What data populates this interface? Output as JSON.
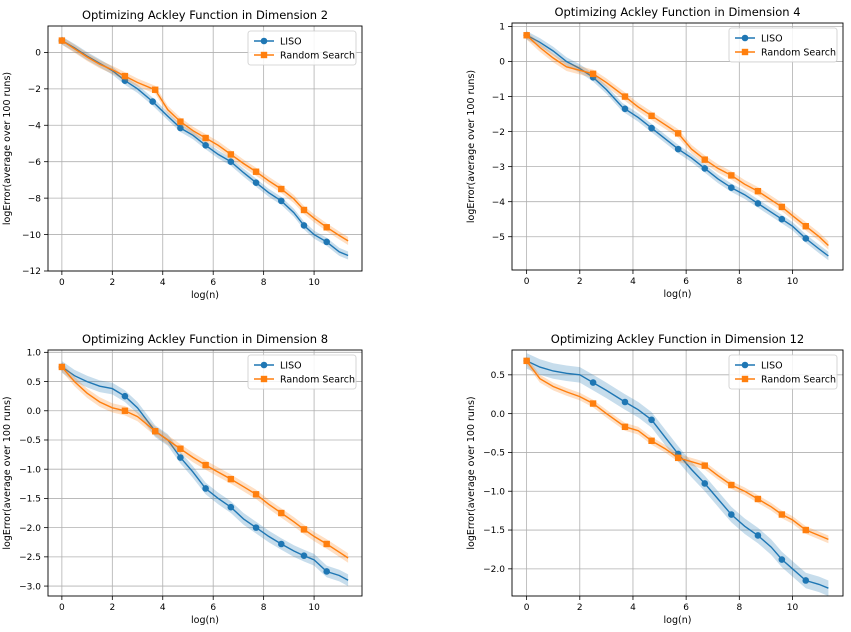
{
  "colors": {
    "liso": "#1f77b4",
    "random": "#ff7f0e",
    "grid": "#b0b0b0"
  },
  "chart_data": [
    {
      "type": "line",
      "title": "Optimizing Ackley Function in Dimension 2",
      "xlabel": "log(n)",
      "ylabel": "logError(average over 100 runs)",
      "xlim": [
        -0.55,
        11.9
      ],
      "ylim": [
        -12,
        1.45
      ],
      "xticks": [
        0,
        2,
        4,
        6,
        8,
        10
      ],
      "yticks": [
        -12,
        -10,
        -8,
        -6,
        -4,
        -2,
        0
      ],
      "grid": true,
      "legend": "top-right",
      "series": [
        {
          "name": "LISO",
          "marker": "circle",
          "color": "#1f77b4",
          "x": [
            0,
            0.5,
            1.0,
            1.5,
            2.0,
            2.5,
            3.0,
            3.6,
            4.2,
            4.7,
            5.2,
            5.7,
            6.2,
            6.7,
            7.2,
            7.7,
            8.2,
            8.7,
            9.2,
            9.6,
            10.0,
            10.5,
            11.0,
            11.35
          ],
          "y": [
            0.65,
            0.25,
            -0.2,
            -0.6,
            -1.0,
            -1.55,
            -2.0,
            -2.7,
            -3.5,
            -4.15,
            -4.55,
            -5.1,
            -5.6,
            -6.0,
            -6.6,
            -7.15,
            -7.7,
            -8.15,
            -8.8,
            -9.5,
            -10.0,
            -10.4,
            -10.95,
            -11.15
          ],
          "markers_x": [
            0,
            2.5,
            3.6,
            4.7,
            5.7,
            6.7,
            7.7,
            8.7,
            9.6,
            10.5
          ],
          "band": 0.22
        },
        {
          "name": "Random Search",
          "marker": "square",
          "color": "#ff7f0e",
          "x": [
            0,
            0.5,
            1.0,
            1.5,
            2.0,
            2.5,
            3.0,
            3.7,
            4.2,
            4.7,
            5.2,
            5.7,
            6.2,
            6.7,
            7.2,
            7.7,
            8.2,
            8.7,
            9.2,
            9.6,
            10.0,
            10.5,
            11.0,
            11.35
          ],
          "y": [
            0.65,
            0.2,
            -0.25,
            -0.65,
            -0.95,
            -1.3,
            -1.65,
            -2.05,
            -3.15,
            -3.8,
            -4.3,
            -4.7,
            -5.1,
            -5.6,
            -6.1,
            -6.55,
            -7.05,
            -7.5,
            -8.05,
            -8.65,
            -9.1,
            -9.6,
            -10.05,
            -10.35
          ],
          "markers_x": [
            0,
            2.5,
            3.7,
            4.7,
            5.7,
            6.7,
            7.7,
            8.7,
            9.6,
            10.5
          ],
          "band": 0.22
        }
      ]
    },
    {
      "type": "line",
      "title": "Optimizing Ackley Function in Dimension 4",
      "xlabel": "log(n)",
      "ylabel": "logError(average over 100 runs)",
      "xlim": [
        -0.55,
        11.9
      ],
      "ylim": [
        -5.95,
        1.1
      ],
      "xticks": [
        0,
        2,
        4,
        6,
        8,
        10
      ],
      "yticks": [
        -5,
        -4,
        -3,
        -2,
        -1,
        0,
        1
      ],
      "grid": true,
      "legend": "top-right",
      "series": [
        {
          "name": "LISO",
          "marker": "circle",
          "color": "#1f77b4",
          "x": [
            0,
            0.5,
            1.0,
            1.5,
            2.0,
            2.5,
            3.0,
            3.6,
            4.2,
            4.7,
            5.2,
            5.7,
            6.2,
            6.7,
            7.2,
            7.7,
            8.2,
            8.7,
            9.2,
            9.6,
            10.0,
            10.5,
            11.0,
            11.35
          ],
          "y": [
            0.75,
            0.55,
            0.3,
            0.0,
            -0.2,
            -0.45,
            -0.8,
            -1.3,
            -1.6,
            -1.9,
            -2.2,
            -2.5,
            -2.75,
            -3.05,
            -3.35,
            -3.6,
            -3.8,
            -4.05,
            -4.3,
            -4.5,
            -4.7,
            -5.05,
            -5.35,
            -5.55
          ],
          "markers_x": [
            0,
            2.5,
            3.7,
            4.7,
            5.7,
            6.7,
            7.7,
            8.7,
            9.6,
            10.5
          ],
          "band": 0.12
        },
        {
          "name": "Random Search",
          "marker": "square",
          "color": "#ff7f0e",
          "x": [
            0,
            0.5,
            1.0,
            1.5,
            2.0,
            2.5,
            3.0,
            3.7,
            4.2,
            4.7,
            5.2,
            5.7,
            6.2,
            6.7,
            7.2,
            7.7,
            8.2,
            8.7,
            9.2,
            9.6,
            10.0,
            10.5,
            11.0,
            11.35
          ],
          "y": [
            0.75,
            0.4,
            0.1,
            -0.15,
            -0.25,
            -0.35,
            -0.6,
            -1.0,
            -1.3,
            -1.55,
            -1.8,
            -2.05,
            -2.5,
            -2.8,
            -3.05,
            -3.25,
            -3.5,
            -3.7,
            -3.95,
            -4.15,
            -4.4,
            -4.7,
            -5.0,
            -5.25
          ],
          "markers_x": [
            0,
            2.5,
            3.7,
            4.7,
            5.7,
            6.7,
            7.7,
            8.7,
            9.6,
            10.5
          ],
          "band": 0.12
        }
      ]
    },
    {
      "type": "line",
      "title": "Optimizing Ackley Function in Dimension 8",
      "xlabel": "log(n)",
      "ylabel": "logError(average over 100 runs)",
      "xlim": [
        -0.55,
        11.9
      ],
      "ylim": [
        -3.17,
        1.04
      ],
      "xticks": [
        0,
        2,
        4,
        6,
        8,
        10
      ],
      "yticks": [
        -3.0,
        -2.5,
        -2.0,
        -1.5,
        -1.0,
        -0.5,
        0.0,
        0.5,
        1.0
      ],
      "ytick_labels": [
        "−3.0",
        "−2.5",
        "−2.0",
        "−1.5",
        "−1.0",
        "−0.5",
        "0.0",
        "0.5",
        "1.0"
      ],
      "grid": true,
      "legend": "top-right",
      "series": [
        {
          "name": "LISO",
          "marker": "circle",
          "color": "#1f77b4",
          "x": [
            0,
            0.5,
            1.0,
            1.5,
            2.0,
            2.5,
            3.0,
            3.7,
            4.2,
            4.7,
            5.2,
            5.7,
            6.2,
            6.7,
            7.2,
            7.7,
            8.2,
            8.7,
            9.2,
            9.6,
            10.0,
            10.5,
            11.0,
            11.35
          ],
          "y": [
            0.75,
            0.6,
            0.5,
            0.42,
            0.38,
            0.25,
            0.05,
            -0.35,
            -0.5,
            -0.8,
            -1.05,
            -1.33,
            -1.5,
            -1.65,
            -1.85,
            -2.0,
            -2.15,
            -2.28,
            -2.4,
            -2.48,
            -2.55,
            -2.75,
            -2.82,
            -2.9
          ],
          "markers_x": [
            0,
            2.5,
            3.7,
            4.7,
            5.7,
            6.7,
            7.7,
            8.7,
            9.6,
            10.5
          ],
          "band": 0.1
        },
        {
          "name": "Random Search",
          "marker": "square",
          "color": "#ff7f0e",
          "x": [
            0,
            0.5,
            1.0,
            1.5,
            2.0,
            2.5,
            3.0,
            3.7,
            4.2,
            4.7,
            5.2,
            5.7,
            6.2,
            6.7,
            7.2,
            7.7,
            8.2,
            8.7,
            9.2,
            9.6,
            10.0,
            10.5,
            11.0,
            11.35
          ],
          "y": [
            0.75,
            0.5,
            0.3,
            0.15,
            0.05,
            0.0,
            -0.1,
            -0.35,
            -0.5,
            -0.65,
            -0.8,
            -0.93,
            -1.05,
            -1.17,
            -1.3,
            -1.43,
            -1.6,
            -1.75,
            -1.9,
            -2.03,
            -2.15,
            -2.28,
            -2.42,
            -2.52
          ],
          "markers_x": [
            0,
            2.5,
            3.7,
            4.7,
            5.7,
            6.7,
            7.7,
            8.7,
            9.6,
            10.5
          ],
          "band": 0.08
        }
      ]
    },
    {
      "type": "line",
      "title": "Optimizing Ackley Function in Dimension 12",
      "xlabel": "log(n)",
      "ylabel": "logError(average over 100 runs)",
      "xlim": [
        -0.55,
        11.9
      ],
      "ylim": [
        -2.35,
        0.82
      ],
      "xticks": [
        0,
        2,
        4,
        6,
        8,
        10
      ],
      "yticks": [
        -2.0,
        -1.5,
        -1.0,
        -0.5,
        0.0,
        0.5
      ],
      "ytick_labels": [
        "−2.0",
        "−1.5",
        "−1.0",
        "−0.5",
        "0.0",
        "0.5"
      ],
      "grid": true,
      "legend": "top-right",
      "series": [
        {
          "name": "LISO",
          "marker": "circle",
          "color": "#1f77b4",
          "x": [
            0,
            0.5,
            1.0,
            1.5,
            2.0,
            2.5,
            3.0,
            3.7,
            4.2,
            4.7,
            5.2,
            5.7,
            6.2,
            6.7,
            7.2,
            7.7,
            8.2,
            8.7,
            9.2,
            9.6,
            10.0,
            10.5,
            11.0,
            11.35
          ],
          "y": [
            0.68,
            0.6,
            0.55,
            0.52,
            0.5,
            0.4,
            0.3,
            0.15,
            0.05,
            -0.08,
            -0.3,
            -0.52,
            -0.72,
            -0.9,
            -1.1,
            -1.3,
            -1.45,
            -1.57,
            -1.72,
            -1.88,
            -2.0,
            -2.15,
            -2.2,
            -2.25
          ],
          "markers_x": [
            0,
            2.5,
            3.7,
            4.7,
            5.7,
            6.7,
            7.7,
            8.7,
            9.6,
            10.5
          ],
          "band": 0.1
        },
        {
          "name": "Random Search",
          "marker": "square",
          "color": "#ff7f0e",
          "x": [
            0,
            0.5,
            1.0,
            1.5,
            2.0,
            2.5,
            3.0,
            3.7,
            4.2,
            4.7,
            5.2,
            5.7,
            6.2,
            6.7,
            7.2,
            7.7,
            8.2,
            8.7,
            9.2,
            9.6,
            10.0,
            10.5,
            11.0,
            11.35
          ],
          "y": [
            0.68,
            0.45,
            0.35,
            0.28,
            0.22,
            0.13,
            0.0,
            -0.17,
            -0.22,
            -0.35,
            -0.45,
            -0.57,
            -0.62,
            -0.67,
            -0.8,
            -0.92,
            -1.0,
            -1.1,
            -1.2,
            -1.3,
            -1.37,
            -1.5,
            -1.57,
            -1.62
          ],
          "markers_x": [
            0,
            2.5,
            3.7,
            4.7,
            5.7,
            6.7,
            7.7,
            8.7,
            9.6,
            10.5
          ],
          "band": 0.05
        }
      ]
    }
  ]
}
